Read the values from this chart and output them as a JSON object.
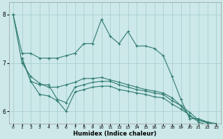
{
  "xlabel": "Humidex (Indice chaleur)",
  "ylabel": "",
  "bg_color": "#cce8e8",
  "grid_color": "#aad0d0",
  "line_color": "#2e7b6e",
  "xlim": [
    -0.5,
    23.5
  ],
  "ylim": [
    5.75,
    8.25
  ],
  "xticks": [
    0,
    1,
    2,
    3,
    4,
    5,
    6,
    7,
    8,
    9,
    10,
    11,
    12,
    13,
    14,
    15,
    16,
    17,
    18,
    19,
    20,
    21,
    22,
    23
  ],
  "yticks": [
    6,
    7,
    8
  ],
  "series": {
    "line1": [
      8.0,
      7.2,
      7.2,
      7.1,
      7.1,
      7.1,
      7.15,
      7.2,
      7.4,
      7.4,
      7.9,
      7.55,
      7.4,
      7.65,
      7.35,
      7.35,
      7.3,
      7.15,
      6.72,
      6.25,
      5.85,
      5.85,
      5.78,
      5.75
    ],
    "line2": [
      8.0,
      7.0,
      6.72,
      6.58,
      6.5,
      6.5,
      6.55,
      6.6,
      6.68,
      6.68,
      6.7,
      6.65,
      6.6,
      6.55,
      6.5,
      6.45,
      6.42,
      6.38,
      6.28,
      6.12,
      5.9,
      5.82,
      5.76,
      5.72
    ],
    "line3": [
      7.1,
      6.62,
      6.55,
      6.55,
      6.25,
      6.18,
      6.5,
      6.55,
      6.6,
      6.62,
      6.62,
      6.55,
      6.5,
      6.45,
      6.42,
      6.38,
      6.35,
      6.22,
      6.12,
      5.98,
      5.82,
      5.78,
      5.72,
      5.7
    ],
    "line4": [
      7.1,
      6.62,
      6.35,
      6.32,
      6.22,
      6.0,
      6.4,
      6.45,
      6.5,
      6.52,
      6.52,
      6.45,
      6.42,
      6.38,
      6.35,
      6.3,
      6.28,
      6.15,
      6.05,
      5.92,
      5.78,
      5.72,
      5.68,
      5.65
    ]
  }
}
